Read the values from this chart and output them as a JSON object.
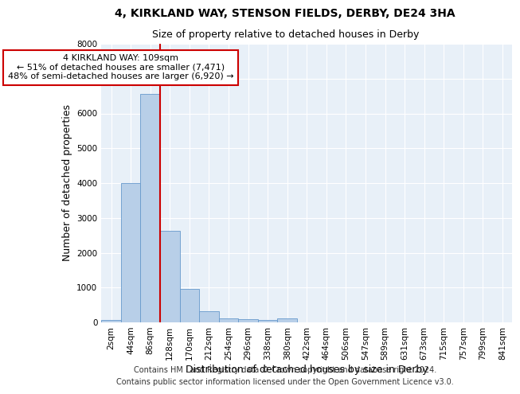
{
  "title": "4, KIRKLAND WAY, STENSON FIELDS, DERBY, DE24 3HA",
  "subtitle": "Size of property relative to detached houses in Derby",
  "xlabel": "Distribution of detached houses by size in Derby",
  "ylabel": "Number of detached properties",
  "categories": [
    "2sqm",
    "44sqm",
    "86sqm",
    "128sqm",
    "170sqm",
    "212sqm",
    "254sqm",
    "296sqm",
    "338sqm",
    "380sqm",
    "422sqm",
    "464sqm",
    "506sqm",
    "547sqm",
    "589sqm",
    "631sqm",
    "673sqm",
    "715sqm",
    "757sqm",
    "799sqm",
    "841sqm"
  ],
  "values": [
    80,
    4000,
    6550,
    2620,
    960,
    310,
    120,
    95,
    80,
    105,
    0,
    0,
    0,
    0,
    0,
    0,
    0,
    0,
    0,
    0,
    0
  ],
  "bar_color": "#b8cfe8",
  "bar_edge_color": "#6699cc",
  "vline_x_index": 2.5,
  "vline_color": "#cc0000",
  "annotation_text": "4 KIRKLAND WAY: 109sqm\n← 51% of detached houses are smaller (7,471)\n48% of semi-detached houses are larger (6,920) →",
  "annotation_box_color": "#ffffff",
  "annotation_box_edge": "#cc0000",
  "ylim": [
    0,
    8000
  ],
  "background_color": "#e8f0f8",
  "footer_text": "Contains HM Land Registry data © Crown copyright and database right 2024.\nContains public sector information licensed under the Open Government Licence v3.0.",
  "title_fontsize": 10,
  "subtitle_fontsize": 9,
  "tick_fontsize": 7.5,
  "ylabel_fontsize": 9,
  "xlabel_fontsize": 9,
  "ann_fontsize": 8
}
